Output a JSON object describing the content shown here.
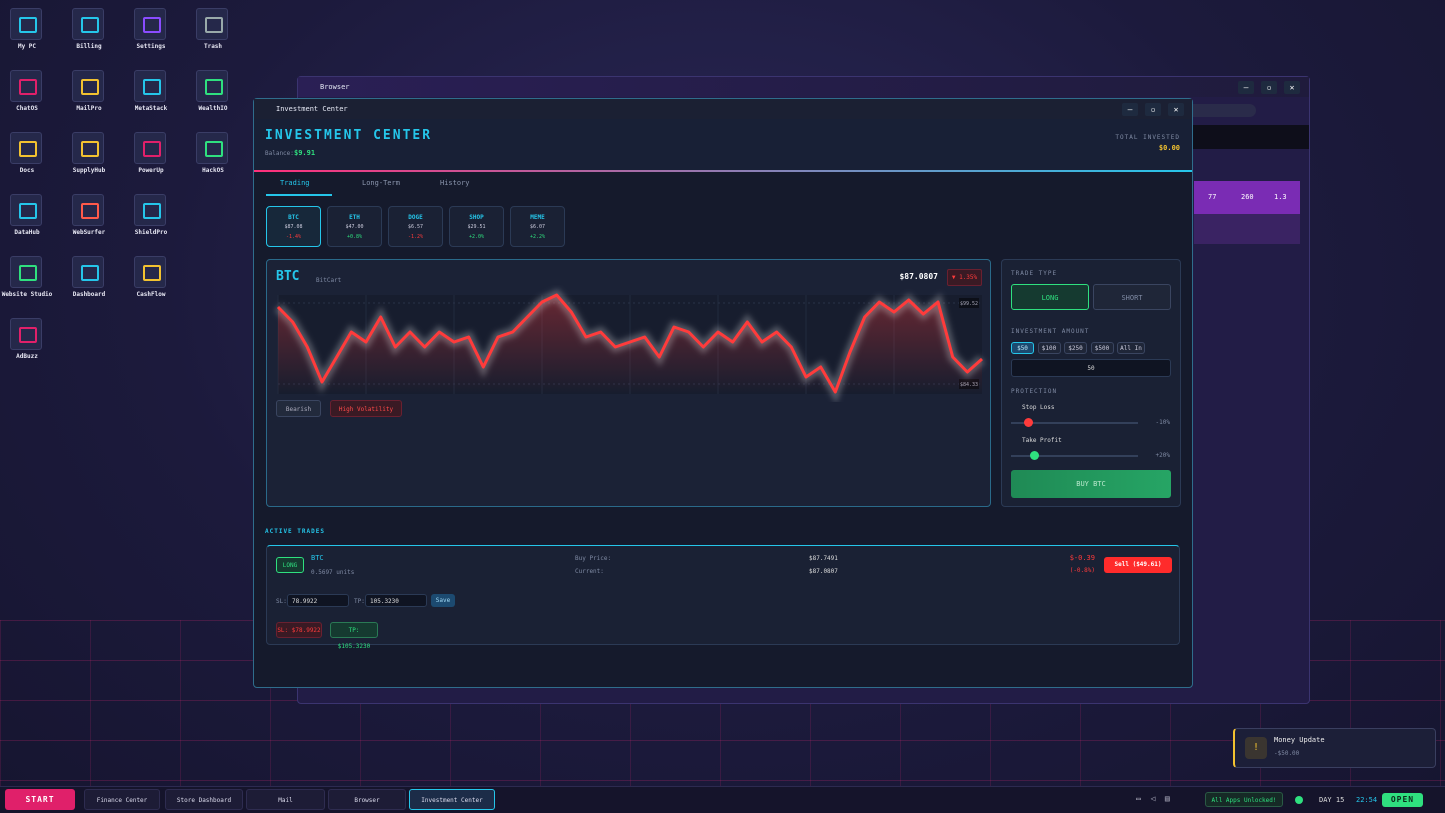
{
  "desktop_icons": [
    [
      "My PC",
      "Billing",
      "Settings",
      "Trash"
    ],
    [
      "ChatOS",
      "MailPro",
      "MetaStack",
      "WealthIO"
    ],
    [
      "Docs",
      "SupplyHub",
      "PowerUp",
      "HackOS"
    ],
    [
      "DataHub",
      "WebSurfer",
      "ShieldPro"
    ],
    [
      "Website Studio",
      "Dashboard",
      "CashFlow"
    ],
    [
      "AdBuzz"
    ]
  ],
  "browser": {
    "title": "Browser",
    "stats": [
      "77",
      "260",
      "1.3"
    ]
  },
  "investment": {
    "window_title": "Investment Center",
    "title": "INVESTMENT CENTER",
    "balance_label": "Balance:",
    "balance": "$9.91",
    "total_label": "TOTAL INVESTED",
    "total": "$0.00",
    "tabs": [
      "Trading",
      "Long-Term",
      "History"
    ],
    "tickers": [
      {
        "symbol": "BTC",
        "price": "$87.08",
        "change": "-1.4%"
      },
      {
        "symbol": "ETH",
        "price": "$47.00",
        "change": "+0.8%"
      },
      {
        "symbol": "DOGE",
        "price": "$6.57",
        "change": "-1.2%"
      },
      {
        "symbol": "SHOP",
        "price": "$29.51",
        "change": "+2.0%"
      },
      {
        "symbol": "MEME",
        "price": "$6.07",
        "change": "+2.2%"
      }
    ],
    "chart": {
      "symbol": "BTC",
      "name": "BitCart",
      "price": "$87.0807",
      "change": "▼ 1.35%",
      "color": "#ff3b3b",
      "values": [
        98.77,
        95.96,
        91.27,
        84.71,
        89.39,
        94.08,
        92.21,
        96.89,
        91.27,
        94.08,
        91.27,
        94.08,
        92.21,
        93.14,
        87.52,
        93.14,
        94.08,
        96.89,
        99.71,
        101.02,
        97.83,
        93.14,
        94.08,
        91.27,
        92.21,
        93.14,
        89.39,
        95.02,
        94.08,
        91.27,
        94.08,
        92.21,
        95.96,
        92.21,
        94.08,
        91.27,
        85.64,
        87.52,
        82.83,
        90.33,
        96.89,
        99.71,
        97.83,
        100.08,
        97.46,
        99.71,
        89.39,
        86.58,
        89.02
      ],
      "yticks": [
        {
          "value": 99.52,
          "label": "$99.52"
        },
        {
          "value": 84.33,
          "label": "$84.33"
        }
      ],
      "tags": [
        "Bearish",
        "High Volatility"
      ]
    },
    "trade": {
      "type_label": "TRADE TYPE",
      "long": "LONG",
      "short": "SHORT",
      "amount_label": "INVESTMENT AMOUNT",
      "amounts": [
        "$50",
        "$100",
        "$250",
        "$500",
        "All In"
      ],
      "amount": "50",
      "protection_label": "PROTECTION",
      "stop_loss": "Stop Loss",
      "stop_loss_pct": "-10%",
      "take_profit": "Take Profit",
      "take_profit_pct": "+20%",
      "buy": "BUY BTC"
    },
    "active": {
      "title": "ACTIVE TRADES",
      "side": "LONG",
      "symbol": "BTC",
      "units": "0.5697 units",
      "buy_label": "Buy Price:",
      "buy_price": "$87.7491",
      "current_label": "Current:",
      "current": "$87.0807",
      "pnl": "$-0.39",
      "pnl_pct": "(-0.8%)",
      "sell": "Sell ($49.61)",
      "sl_label": "SL:",
      "sl": "78.9922",
      "tp_label": "TP:",
      "tp": "105.3230",
      "save": "Save",
      "sl_tag": "SL: $78.9922",
      "tp_tag": "TP: $105.3230"
    }
  },
  "notification": {
    "title": "Money Update",
    "amount": "-$50.00"
  },
  "taskbar": {
    "start": "START",
    "items": [
      "Finance Center",
      "Store Dashboard",
      "Mail",
      "Browser",
      "Investment Center"
    ],
    "status": "All Apps Unlocked!",
    "day": "DAY 15",
    "time": "22:54",
    "open": "OPEN"
  }
}
